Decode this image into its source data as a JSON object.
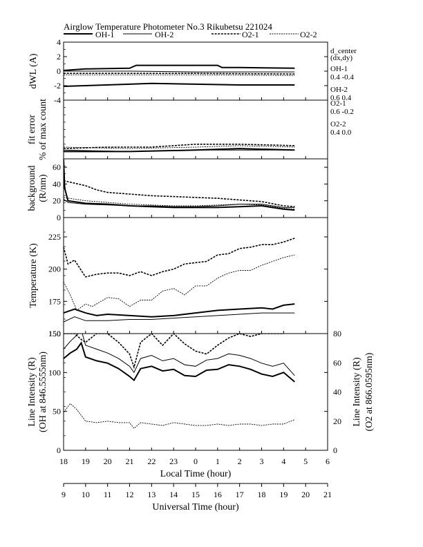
{
  "chart_data": {
    "type": "line",
    "title": "Airglow Temperature Photometer No.3  Rikubetsu    221024",
    "legend": [
      {
        "name": "OH-1",
        "style": "solid-thick"
      },
      {
        "name": "OH-2",
        "style": "solid-thin"
      },
      {
        "name": "O2-1",
        "style": "dashed-thick"
      },
      {
        "name": "O2-2",
        "style": "dashed-thin"
      }
    ],
    "d_center": {
      "header": [
        "d_center",
        "(dx,dy)"
      ],
      "entries": [
        {
          "name": "OH-1",
          "value": "0.4  -0.4"
        },
        {
          "name": "OH-2",
          "value": "0.6  0.4"
        },
        {
          "name": "O2-1",
          "value": "0.6  -0.2"
        },
        {
          "name": "O2-2",
          "value": "0.4  0.0"
        }
      ]
    },
    "x_local": {
      "label": "Local Time (hour)",
      "ticks": [
        "18",
        "19",
        "20",
        "21",
        "22",
        "23",
        "0",
        "1",
        "2",
        "3",
        "4",
        "5",
        "6"
      ]
    },
    "x_ut": {
      "label": "Universal Time (hour)",
      "ticks": [
        "9",
        "10",
        "11",
        "12",
        "13",
        "14",
        "15",
        "16",
        "17",
        "18",
        "19",
        "20",
        "21"
      ]
    },
    "x_range_ut": [
      9,
      21
    ],
    "panels": [
      {
        "id": "dwl",
        "ylabel": "dWL (A)",
        "ylim": [
          -4,
          4
        ],
        "yticks": [
          "-4",
          "-2",
          "0",
          "2",
          "4"
        ],
        "series": [
          {
            "name": "OH-1",
            "style": "solid-thick",
            "x": [
              9.0,
              10.0,
              12.0,
              12.3,
              16.0,
              16.2,
              17.0,
              19.5
            ],
            "y": [
              0.1,
              0.3,
              0.4,
              0.8,
              0.8,
              0.5,
              0.5,
              0.4
            ]
          },
          {
            "name": "OH-2",
            "style": "solid-thin",
            "x": [
              9.0,
              12.0,
              15.0,
              19.5
            ],
            "y": [
              0.0,
              0.0,
              -0.1,
              -0.1
            ]
          },
          {
            "name": "O2-1",
            "style": "dashed-thick",
            "x": [
              9.0,
              12.0,
              15.0,
              19.5
            ],
            "y": [
              -0.3,
              -0.3,
              -0.3,
              -0.4
            ]
          },
          {
            "name": "O2-2",
            "style": "dashed-thin",
            "x": [
              9.0,
              12.0,
              15.0,
              19.5
            ],
            "y": [
              -0.5,
              -0.5,
              -0.5,
              -0.6
            ]
          },
          {
            "name": "OH-1 (lower)",
            "style": "solid-thick",
            "x": [
              9.0,
              10.0,
              12.0,
              13.0,
              15.0,
              17.0,
              19.5
            ],
            "y": [
              -2.1,
              -2.0,
              -1.8,
              -1.7,
              -1.8,
              -1.9,
              -1.9
            ]
          }
        ]
      },
      {
        "id": "fit",
        "ylabel": "fit error",
        "ylabel2": "% of max count",
        "ylim": [
          0,
          4
        ],
        "yticks": [],
        "series": [
          {
            "name": "OH-1",
            "style": "solid-thick",
            "x": [
              9.0,
              12.0,
              15.0,
              17.0,
              19.5
            ],
            "y": [
              0.5,
              0.5,
              0.6,
              0.7,
              0.6
            ]
          },
          {
            "name": "OH-2",
            "style": "solid-thin",
            "x": [
              9.0,
              12.0,
              15.0,
              17.0,
              19.5
            ],
            "y": [
              0.6,
              0.5,
              0.6,
              0.6,
              0.6
            ]
          },
          {
            "name": "O2-1",
            "style": "dashed-thick",
            "x": [
              9.0,
              11.0,
              13.0,
              15.0,
              17.0,
              19.5
            ],
            "y": [
              0.7,
              0.8,
              0.8,
              1.0,
              1.0,
              0.9
            ]
          },
          {
            "name": "O2-2",
            "style": "dashed-thin",
            "x": [
              9.0,
              12.0,
              15.0,
              17.0,
              19.5
            ],
            "y": [
              0.8,
              0.7,
              0.8,
              0.9,
              0.8
            ]
          }
        ]
      },
      {
        "id": "bg",
        "ylabel": "background",
        "ylabel2": "(R/nm)",
        "ylim": [
          0,
          70
        ],
        "yticks": [
          "0",
          "20",
          "40",
          "60"
        ],
        "series": [
          {
            "name": "OH-1",
            "style": "solid-thick",
            "x": [
              9.0,
              9.05,
              9.2,
              10.0,
              11.0,
              12.0,
              13.0,
              14.0,
              15.0,
              16.0,
              17.0,
              18.0,
              19.0,
              19.5
            ],
            "y": [
              70,
              35,
              20,
              17,
              16,
              14,
              13,
              12,
              12,
              12,
              13,
              14,
              10,
              9
            ]
          },
          {
            "name": "OH-2",
            "style": "solid-thin",
            "x": [
              9.0,
              9.2,
              10.0,
              11.0,
              12.0,
              13.0,
              14.0,
              15.0,
              16.0,
              17.0,
              18.0,
              19.0,
              19.5
            ],
            "y": [
              22,
              18,
              16,
              15,
              14,
              14,
              13,
              13,
              14,
              16,
              16,
              12,
              12
            ]
          },
          {
            "name": "O2-1",
            "style": "dashed-thick",
            "x": [
              9.0,
              9.5,
              10.0,
              10.5,
              11.0,
              12.0,
              13.0,
              14.0,
              15.0,
              16.0,
              17.0,
              18.0,
              19.0,
              19.5
            ],
            "y": [
              44,
              41,
              38,
              33,
              30,
              28,
              26,
              25,
              24,
              23,
              21,
              19,
              14,
              13
            ]
          },
          {
            "name": "O2-2",
            "style": "dashed-thin",
            "x": [
              9.0,
              10.0,
              11.0,
              12.0,
              13.0,
              14.0,
              15.0,
              16.0,
              17.0,
              18.0,
              19.0,
              19.5
            ],
            "y": [
              24,
              20,
              18,
              16,
              15,
              14,
              14,
              15,
              16,
              15,
              11,
              10
            ]
          }
        ]
      },
      {
        "id": "temp",
        "ylabel": "Temperature (K)",
        "ylim": [
          150,
          240
        ],
        "yticks": [
          "150",
          "175",
          "200",
          "225"
        ],
        "series": [
          {
            "name": "OH-1",
            "style": "solid-thick",
            "x": [
              9.0,
              9.5,
              10.0,
              10.5,
              11.0,
              12.0,
              13.0,
              14.0,
              15.0,
              16.0,
              17.0,
              18.0,
              18.5,
              19.0,
              19.5
            ],
            "y": [
              166,
              169,
              166,
              164,
              165,
              164,
              163,
              164,
              166,
              168,
              169,
              170,
              169,
              172,
              173
            ]
          },
          {
            "name": "OH-2",
            "style": "solid-thin",
            "x": [
              9.0,
              9.5,
              10.0,
              11.0,
              12.0,
              13.0,
              14.0,
              15.0,
              16.0,
              17.0,
              18.0,
              19.0,
              19.5
            ],
            "y": [
              159,
              163,
              160,
              160,
              161,
              161,
              162,
              163,
              164,
              165,
              166,
              166,
              166
            ]
          },
          {
            "name": "O2-1",
            "style": "dashed-thick",
            "x": [
              9.0,
              9.2,
              9.5,
              9.8,
              10.0,
              10.5,
              11.0,
              11.5,
              12.0,
              12.5,
              13.0,
              13.5,
              14.0,
              14.5,
              15.0,
              15.5,
              16.0,
              16.5,
              17.0,
              17.5,
              18.0,
              18.5,
              19.0,
              19.5
            ],
            "y": [
              217,
              204,
              207,
              199,
              194,
              196,
              197,
              197,
              195,
              198,
              195,
              198,
              200,
              204,
              205,
              206,
              211,
              212,
              216,
              217,
              219,
              219,
              221,
              224
            ]
          },
          {
            "name": "O2-2",
            "style": "dashed-thin",
            "x": [
              9.0,
              9.3,
              9.6,
              10.0,
              10.3,
              10.7,
              11.0,
              11.5,
              12.0,
              12.5,
              13.0,
              13.5,
              14.0,
              14.5,
              15.0,
              15.5,
              16.0,
              16.5,
              17.0,
              17.5,
              18.0,
              18.5,
              19.0,
              19.5
            ],
            "y": [
              190,
              180,
              168,
              173,
              171,
              175,
              178,
              177,
              171,
              176,
              176,
              183,
              185,
              180,
              187,
              187,
              193,
              197,
              199,
              199,
              203,
              206,
              209,
              211
            ]
          }
        ]
      },
      {
        "id": "int",
        "ylabel": "Line Intensity (R)",
        "ylabel2": "(OH at 846.5555nm)",
        "ylabel_right": "Line Intensity (R)",
        "ylabel_right2": "(O2 at 866.0595nm)",
        "ylim": [
          0,
          150
        ],
        "yticks": [
          "0",
          "50",
          "100",
          "150"
        ],
        "ylim_right": [
          0,
          80
        ],
        "yticks_right": [
          "0",
          "20",
          "40",
          "60",
          "80"
        ],
        "series": [
          {
            "name": "OH-1",
            "style": "solid-thick",
            "axis": "left",
            "x": [
              9.0,
              9.3,
              9.6,
              9.8,
              10.0,
              10.5,
              11.0,
              11.5,
              12.0,
              12.2,
              12.5,
              13.0,
              13.5,
              14.0,
              14.5,
              15.0,
              15.5,
              16.0,
              16.5,
              17.0,
              17.5,
              18.0,
              18.5,
              19.0,
              19.5
            ],
            "y": [
              118,
              125,
              130,
              138,
              120,
              115,
              112,
              105,
              95,
              90,
              105,
              108,
              102,
              104,
              96,
              95,
              103,
              104,
              110,
              108,
              104,
              98,
              95,
              100,
              88
            ]
          },
          {
            "name": "OH-2",
            "style": "solid-thin",
            "axis": "left",
            "x": [
              9.0,
              9.3,
              9.6,
              9.8,
              10.0,
              10.5,
              11.0,
              11.5,
              12.0,
              12.2,
              12.5,
              13.0,
              13.5,
              14.0,
              14.5,
              15.0,
              15.5,
              16.0,
              16.5,
              17.0,
              17.5,
              18.0,
              18.5,
              19.0,
              19.5
            ],
            "y": [
              130,
              140,
              148,
              155,
              135,
              130,
              125,
              118,
              108,
              100,
              118,
              122,
              115,
              118,
              110,
              108,
              116,
              118,
              124,
              122,
              118,
              112,
              108,
              112,
              96
            ]
          },
          {
            "name": "O2-1",
            "style": "dashed-thick",
            "axis": "right",
            "x": [
              9.0,
              9.5,
              9.8,
              10.0,
              10.5,
              11.0,
              11.5,
              12.0,
              12.2,
              12.5,
              13.0,
              13.5,
              14.0,
              14.5,
              15.0,
              15.5,
              16.0,
              16.5,
              17.0,
              17.5,
              18.0,
              18.5,
              19.0
            ],
            "y": [
              80,
              80,
              76,
              74,
              80,
              80,
              74,
              66,
              57,
              74,
              80,
              72,
              80,
              73,
              68,
              66,
              72,
              77,
              80,
              78,
              80,
              80,
              80
            ]
          },
          {
            "name": "O2-2",
            "style": "dashed-thin",
            "axis": "right",
            "x": [
              9.0,
              9.3,
              9.6,
              10.0,
              10.5,
              11.0,
              11.5,
              12.0,
              12.2,
              12.5,
              13.0,
              13.5,
              14.0,
              14.5,
              15.0,
              15.5,
              16.0,
              16.5,
              17.0,
              17.5,
              18.0,
              18.5,
              19.0,
              19.5
            ],
            "y": [
              26,
              32,
              28,
              20,
              19,
              20,
              19,
              19,
              15,
              19,
              18,
              17,
              19,
              18,
              17,
              17,
              18,
              17,
              18,
              18,
              17,
              18,
              18,
              21
            ]
          }
        ]
      }
    ]
  }
}
